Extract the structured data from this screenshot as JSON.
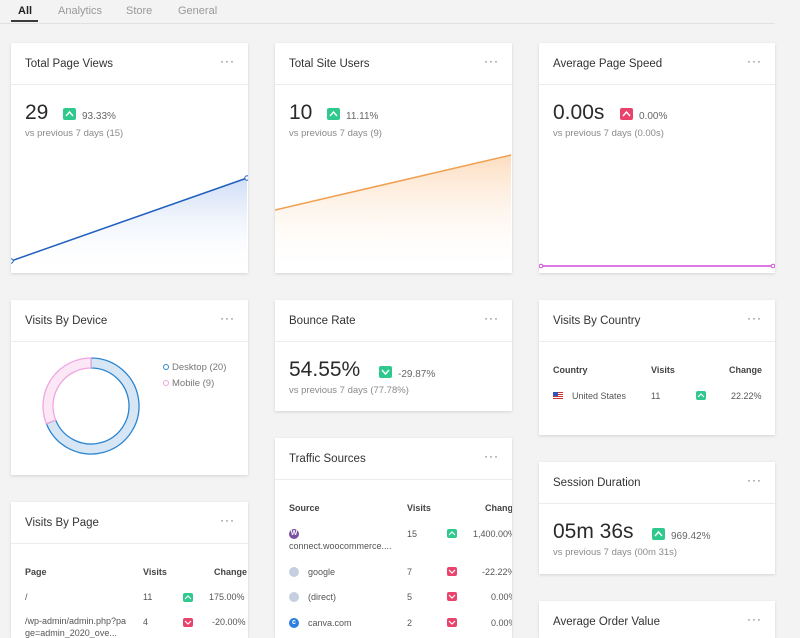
{
  "tabs": [
    "All",
    "Analytics",
    "Store",
    "General"
  ],
  "menu_glyph": "···",
  "colors": {
    "up": "#2fc98e",
    "down": "#e9436b",
    "blue_line": "#1f5fbf",
    "orange_line": "#f0a050",
    "magenta_line": "#d24bd8",
    "desktop": "#2b85d0",
    "mobile": "#f0a6e0"
  },
  "page_views": {
    "title": "Total Page Views",
    "value": "29",
    "change": "93.33%",
    "trend": "up",
    "sub": "vs previous 7 days (15)"
  },
  "site_users": {
    "title": "Total Site Users",
    "value": "10",
    "change": "11.11%",
    "trend": "up",
    "sub": "vs previous 7 days (9)"
  },
  "page_speed": {
    "title": "Average Page Speed",
    "value": "0.00s",
    "change": "0.00%",
    "trend": "down",
    "sub": "vs previous 7 days (0.00s)"
  },
  "device": {
    "title": "Visits By Device",
    "legend": [
      {
        "label": "Desktop (20)",
        "value": 20
      },
      {
        "label": "Mobile (9)",
        "value": 9
      }
    ]
  },
  "bounce": {
    "title": "Bounce Rate",
    "value": "54.55%",
    "change": "-29.87%",
    "trend": "up",
    "sub": "vs previous 7 days (77.78%)"
  },
  "country": {
    "title": "Visits By Country",
    "headers": {
      "country": "Country",
      "visits": "Visits",
      "change": "Change"
    },
    "rows": [
      {
        "name": "United States",
        "visits": "11",
        "change": "22.22%",
        "trend": "up"
      }
    ]
  },
  "traffic": {
    "title": "Traffic Sources",
    "headers": {
      "source": "Source",
      "visits": "Visits",
      "change": "Change"
    },
    "rows": [
      {
        "icon": "W",
        "name": "connect.woocommerce....",
        "visits": "15",
        "change": "1,400.00%",
        "trend": "up"
      },
      {
        "icon": "",
        "name": "google",
        "visits": "7",
        "change": "-22.22%",
        "trend": "down"
      },
      {
        "icon": "",
        "name": "(direct)",
        "visits": "5",
        "change": "0.00%",
        "trend": "down"
      },
      {
        "icon": "c",
        "name": "canva.com",
        "visits": "2",
        "change": "0.00%",
        "trend": "down"
      }
    ]
  },
  "session": {
    "title": "Session Duration",
    "value": "05m 36s",
    "change": "969.42%",
    "trend": "up",
    "sub": "vs previous 7 days (00m 31s)"
  },
  "page_visits": {
    "title": "Visits By Page",
    "headers": {
      "page": "Page",
      "visits": "Visits",
      "change": "Change"
    },
    "rows": [
      {
        "name": "/",
        "visits": "11",
        "change": "175.00%",
        "trend": "up"
      },
      {
        "name": "/wp-admin/admin.php?page=admin_2020_ove...",
        "visits": "4",
        "change": "-20.00%",
        "trend": "down"
      }
    ]
  },
  "order_value": {
    "title": "Average Order Value"
  }
}
